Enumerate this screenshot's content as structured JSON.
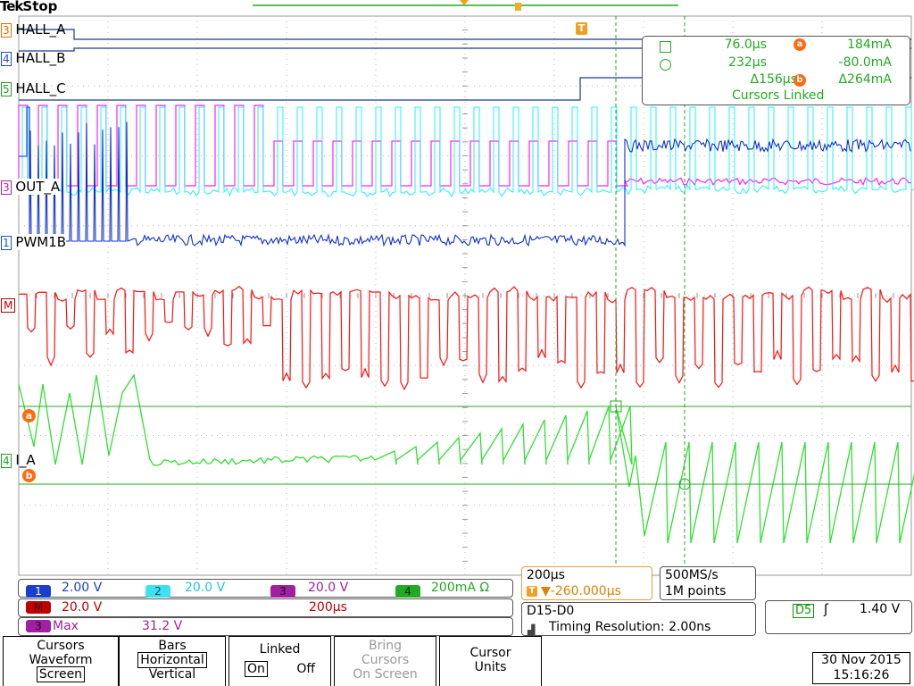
{
  "header": {
    "brand_prefix": "Tek",
    "status": "Stop"
  },
  "trigger_marker_label": "T",
  "channel_labels": {
    "hall_a": {
      "num": "3",
      "text": "HALL_A",
      "color": "#e07000"
    },
    "hall_b": {
      "num": "4",
      "text": "HALL_B",
      "color": "#1a4fd0"
    },
    "hall_c": {
      "num": "5",
      "text": "HALL_C",
      "color": "#20a020"
    },
    "out_a": {
      "num": "3",
      "text": "OUT_A",
      "color": "#b020b0"
    },
    "pwm1b": {
      "num": "1",
      "text": "PWM1B",
      "color": "#1a4fd0"
    },
    "math": {
      "num": "M",
      "text": "",
      "color": "#c00000"
    },
    "i_a": {
      "num": "4",
      "text": "I_A",
      "color": "#20a020"
    }
  },
  "cursor_badges": {
    "a": "a",
    "b": "b"
  },
  "cursor_readout": {
    "t1": "76.0µs",
    "t2": "232µs",
    "dt": "Δ156µs",
    "a_val": "184mA",
    "b_val": "-80.0mA",
    "dv": "Δ264mA",
    "linked": "Cursors Linked"
  },
  "channels_strip": [
    {
      "num": "1",
      "value": "2.00 V",
      "chip": "#1a3fd0",
      "text_color": "#1a3fd0",
      "num_color": "#1a3fd0"
    },
    {
      "num": "2",
      "value": "20.0 V",
      "chip": "#40e0f0",
      "text_color": "#20c8dc",
      "num_color": "#004a55"
    },
    {
      "num": "3",
      "value": "20.0 V",
      "chip": "#a020a0",
      "text_color": "#a020a0",
      "num_color": "#200020"
    },
    {
      "num": "4",
      "value": "200mA Ω",
      "chip": "#22aa22",
      "text_color": "#22aa22",
      "num_color": "#002200"
    }
  ],
  "math_row": {
    "num": "M",
    "value": "20.0 V",
    "time": "200µs"
  },
  "measure_row": {
    "num": "3",
    "label": "Max",
    "value": "31.2 V"
  },
  "horizontal": {
    "scale": "200µs",
    "position": "▼-260.000µs"
  },
  "acquisition": {
    "rate": "500MS/s",
    "points": "1M points"
  },
  "digital": {
    "channels": "D15-D0",
    "resolution": "Timing Resolution: 2.00ns"
  },
  "trigger": {
    "source": "D5",
    "level": "1.40 V"
  },
  "menu": {
    "cursors": {
      "line1": "Cursors",
      "line2": "Waveform",
      "line3": "Screen"
    },
    "bars": {
      "line1": "Bars",
      "line2": "Horizontal",
      "line3": "Vertical"
    },
    "linked": {
      "line1": "Linked",
      "on": "On",
      "off": "Off"
    },
    "bring": {
      "line1": "Bring",
      "line2": "Cursors",
      "line3": "On Screen"
    },
    "units": {
      "line1": "Cursor",
      "line2": "Units"
    }
  },
  "datetime": {
    "date": "30 Nov 2015",
    "time": "15:16:26"
  },
  "colors": {
    "hall": "#1a3a8a",
    "pink": "#ff20ff",
    "cyan": "#20f0ff",
    "blue": "#1030d0",
    "red": "#ff1010",
    "green": "#30e030",
    "grid": "#bbbbbb",
    "cursor": "#22aa22"
  }
}
